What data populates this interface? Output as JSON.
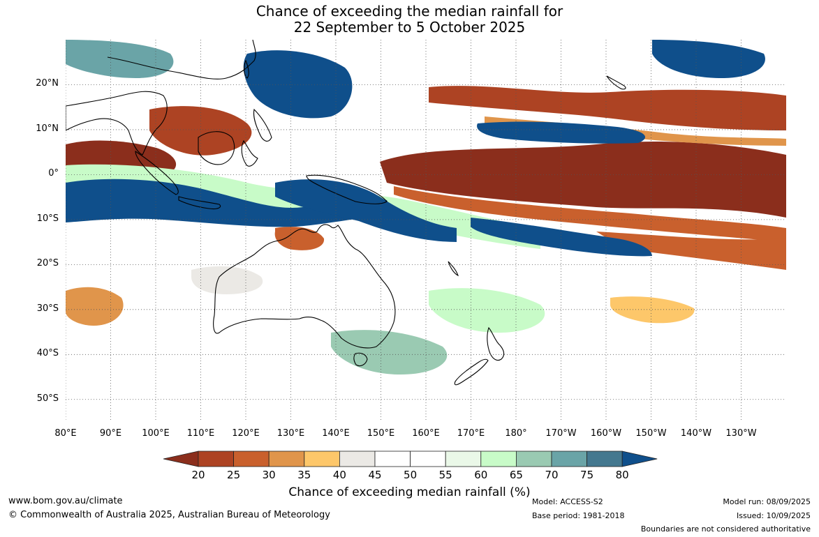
{
  "title": {
    "line1": "Chance of exceeding the median rainfall for",
    "line2": "22 September to 5 October 2025"
  },
  "map": {
    "lat_labels": [
      "20°N",
      "10°N",
      "0°",
      "10°S",
      "20°S",
      "30°S",
      "40°S",
      "50°S"
    ],
    "lon_labels": [
      "80°E",
      "90°E",
      "100°E",
      "110°E",
      "120°E",
      "130°E",
      "140°E",
      "150°E",
      "160°E",
      "170°E",
      "180°",
      "170°W",
      "160°W",
      "150°W",
      "140°W",
      "130°W"
    ],
    "lat_values": [
      20,
      10,
      0,
      -10,
      -20,
      -30,
      -40,
      -50
    ],
    "lon_values": [
      80,
      90,
      100,
      110,
      120,
      130,
      140,
      150,
      160,
      170,
      180,
      190,
      200,
      210,
      220,
      230
    ],
    "extent": {
      "lon_min": 80,
      "lon_max": 240,
      "lat_min": -55,
      "lat_max": 30
    },
    "background_color": "#ffffff",
    "coastline_color": "#000000",
    "gridline_color": "#555555"
  },
  "legend": {
    "title": "Chance of exceeding median rainfall (%)",
    "ticks": [
      "20",
      "25",
      "30",
      "35",
      "40",
      "45",
      "50",
      "55",
      "60",
      "65",
      "70",
      "75",
      "80"
    ],
    "colors": [
      "#8b2e1c",
      "#ad4323",
      "#c9602d",
      "#e0954b",
      "#fdc76a",
      "#ebe9e5",
      "#ffffff",
      "#ffffff",
      "#eaf8e8",
      "#c8fbc8",
      "#9acab2",
      "#6aa4a7",
      "#44788f",
      "#0f4f8b"
    ]
  },
  "footer": {
    "website": "www.bom.gov.au/climate",
    "copyright": "© Commonwealth of Australia 2025, Australian Bureau of Meteorology",
    "model": "Model: ACCESS-S2",
    "base_period": "Base period: 1981-2018",
    "model_run": "Model run: 08/09/2025",
    "issued": "Issued: 10/09/2025",
    "disclaimer": "Boundaries are not considered authoritative"
  }
}
